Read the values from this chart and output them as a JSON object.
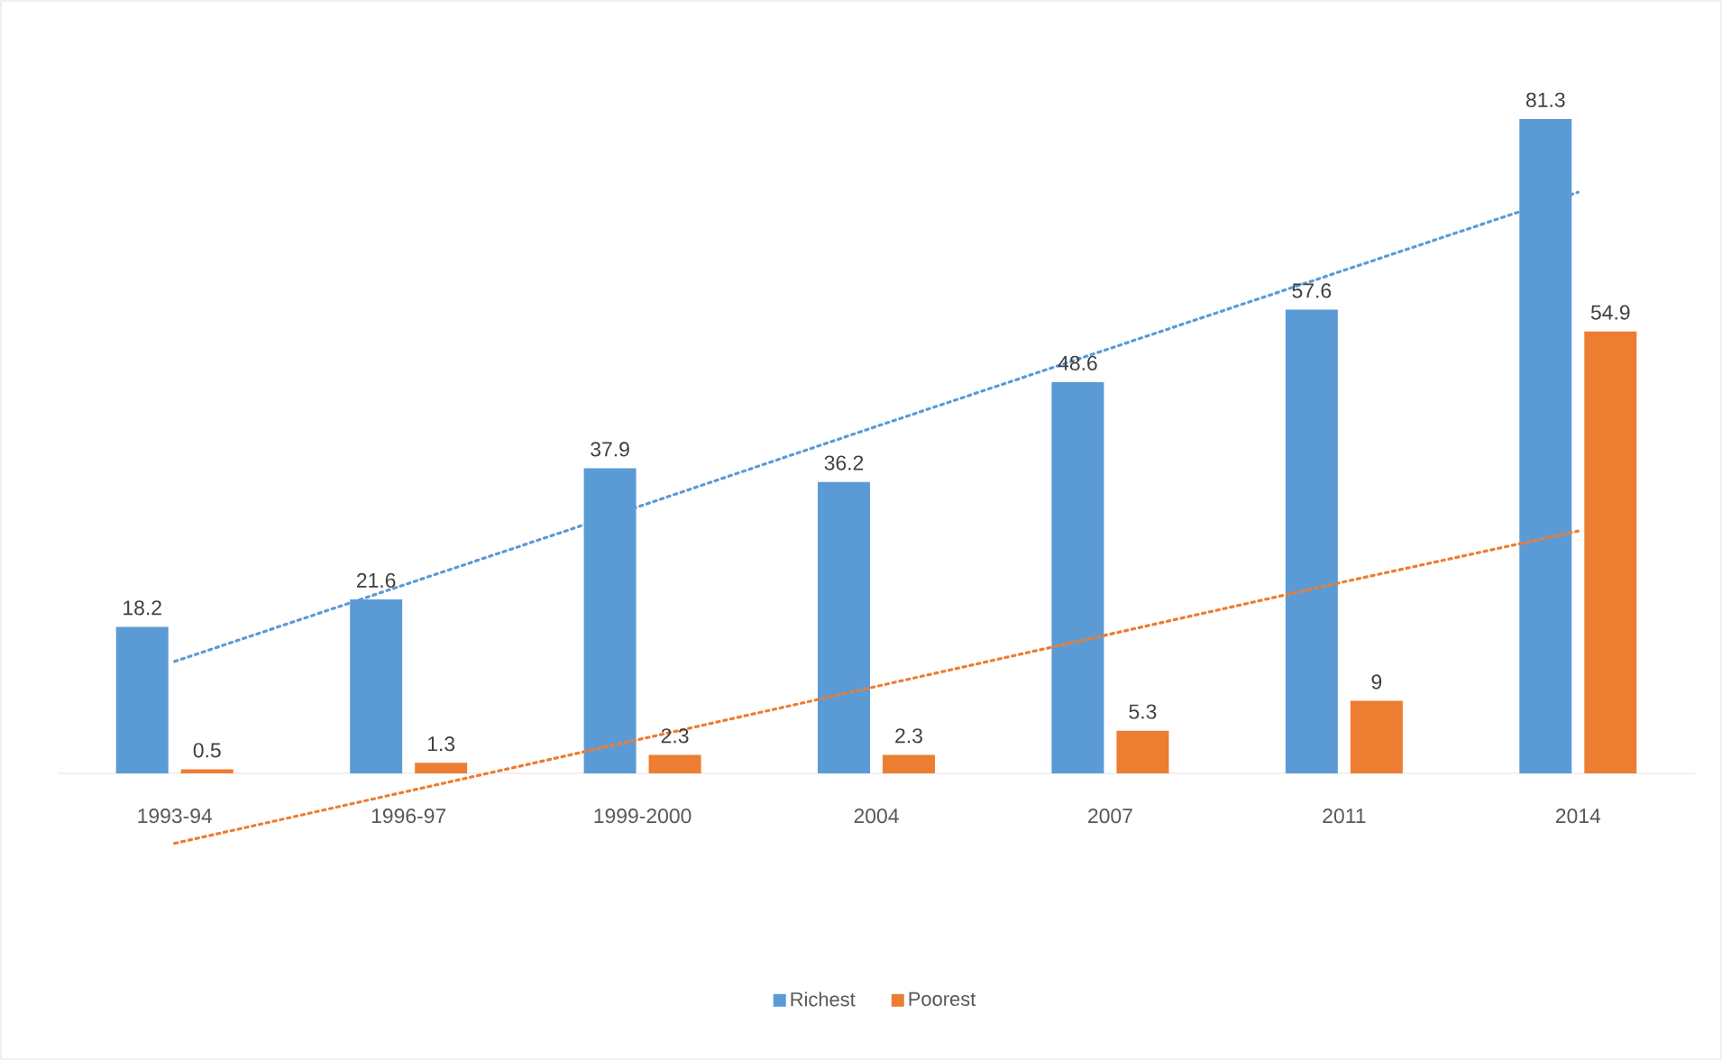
{
  "chart_data": {
    "type": "bar",
    "categories": [
      "1993-94",
      "1996-97",
      "1999-2000",
      "2004",
      "2007",
      "2011",
      "2014"
    ],
    "series": [
      {
        "name": "Richest",
        "color": "#5b9bd5",
        "values": [
          18.2,
          21.6,
          37.9,
          36.2,
          48.6,
          57.6,
          81.3
        ],
        "value_labels": [
          "18.2",
          "21.6",
          "37.9",
          "36.2",
          "48.6",
          "57.6",
          "81.3"
        ]
      },
      {
        "name": "Poorest",
        "color": "#ed7d31",
        "values": [
          0.5,
          1.3,
          2.3,
          2.3,
          5.3,
          9,
          54.9
        ],
        "value_labels": [
          "0.5",
          "1.3",
          "2.3",
          "2.3",
          "5.3",
          "9",
          "54.9"
        ]
      },
      {
        "type": "line",
        "color": "#5b9bd5",
        "line_style": "dotted",
        "values": [
          13.9,
          23.6,
          33.3,
          43.1,
          52.8,
          62.5,
          72.2
        ]
      },
      {
        "type": "line",
        "color": "#ed7d31",
        "line_style": "dotted",
        "values": [
          -8.7,
          -2.2,
          4.3,
          10.8,
          17.3,
          23.8,
          30.1
        ]
      }
    ],
    "legend": "bottom",
    "grid": false
  }
}
